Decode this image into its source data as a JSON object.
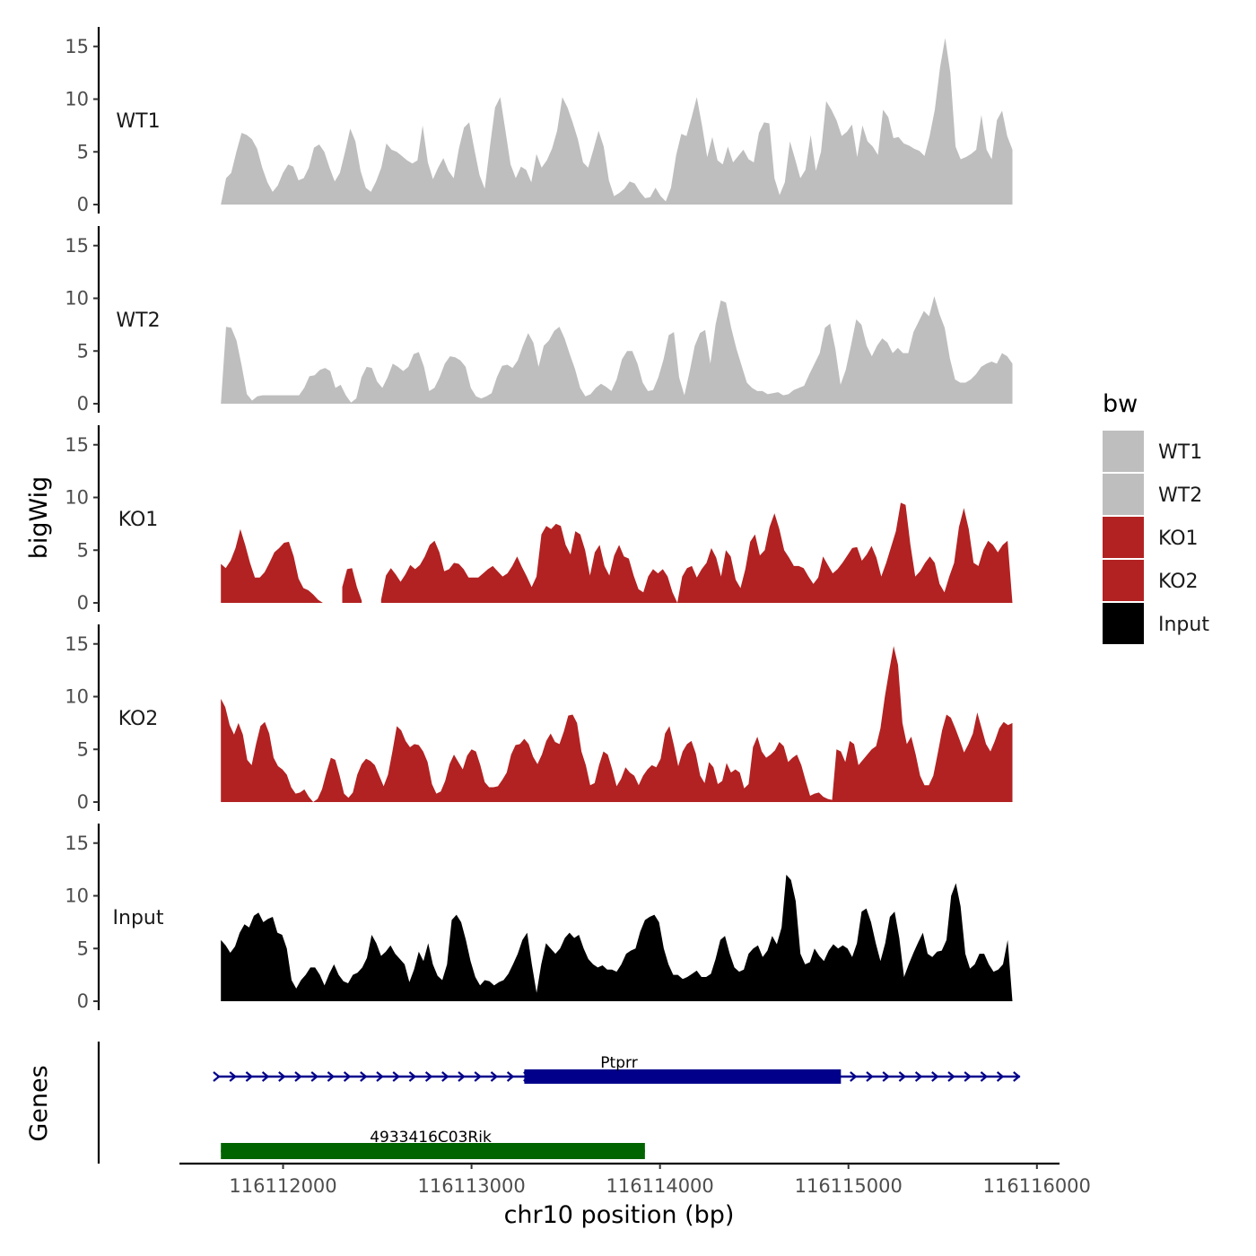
{
  "chart_data": {
    "type": "area",
    "y_axis_title": "bigWig",
    "x_axis_title": "chr10 position (bp)",
    "genes_axis_title": "Genes",
    "ylim": [
      0,
      16
    ],
    "yticks": [
      0,
      5,
      10,
      15
    ],
    "xlim": [
      116111450,
      116116120
    ],
    "xticks": [
      116112000,
      116113000,
      116114000,
      116115000,
      116116000
    ],
    "data_x_range": [
      116111670,
      116115870
    ],
    "legend": {
      "title": "bw",
      "position": "right",
      "entries": [
        {
          "label": "WT1",
          "color": "#bebebe"
        },
        {
          "label": "WT2",
          "color": "#bebebe"
        },
        {
          "label": "KO1",
          "color": "#b22222"
        },
        {
          "label": "KO2",
          "color": "#b22222"
        },
        {
          "label": "Input",
          "color": "#000000"
        }
      ]
    },
    "series": [
      {
        "name": "WT1",
        "color": "#bebebe",
        "values": [
          0,
          2.5,
          3,
          5,
          6.8,
          6.6,
          6.2,
          5.3,
          3.5,
          2.1,
          1.2,
          1.8,
          3,
          3.8,
          3.6,
          2.3,
          2.5,
          3.5,
          5.4,
          5.7,
          5,
          3.5,
          2.2,
          3,
          5,
          7.2,
          6,
          3.2,
          1.6,
          1.2,
          2.2,
          3.5,
          5.8,
          5.2,
          5,
          4.6,
          4.2,
          3.9,
          4.2,
          7.5,
          4,
          2.4,
          3.5,
          4.4,
          3.2,
          2.5,
          5.3,
          7.3,
          7.8,
          5.2,
          2.8,
          1.5,
          5.5,
          9.2,
          10.2,
          7,
          3.8,
          2.5,
          3.6,
          3.3,
          2.1,
          4.8,
          3.5,
          4.2,
          5.3,
          7,
          10.2,
          9.2,
          7.8,
          6.2,
          4,
          3.5,
          5.2,
          7,
          5.5,
          2.3,
          0.8,
          1.1,
          1.5,
          2.2,
          2,
          1.2,
          0.6,
          0.7,
          1.6,
          0.8,
          0.3,
          1.6,
          4.7,
          6.7,
          6.5,
          8.3,
          10.2,
          7.5,
          4.5,
          6.4,
          4.2,
          3.8,
          5.5,
          4,
          4.6,
          5.2,
          4.3,
          4,
          6.8,
          7.8,
          7.7,
          2.5,
          0.9,
          2.1,
          6,
          4.3,
          2.5,
          3.3,
          6.6,
          3.2,
          5,
          9.8,
          9,
          8,
          6.5,
          6.9,
          7.6,
          4.5,
          7.5,
          6,
          5.5,
          4.7,
          9,
          8.3,
          6.3,
          6.4,
          5.8,
          5.6,
          5.3,
          5.1,
          4.6,
          6.5,
          9,
          13,
          15.8,
          12.5,
          5.5,
          4.3,
          4.5,
          4.8,
          5.2,
          8.5,
          5.2,
          4.3,
          8,
          8.9,
          6.5,
          5.2
        ]
      },
      {
        "name": "WT2",
        "color": "#bebebe",
        "values": [
          0,
          7.3,
          7.2,
          6,
          3.6,
          0.9,
          0.3,
          0.7,
          0.8,
          0.8,
          0.8,
          0.8,
          0.8,
          0.8,
          0.8,
          0.8,
          1.5,
          2.6,
          2.7,
          3.2,
          3.4,
          3.1,
          1.5,
          1.8,
          0.8,
          0.1,
          0.5,
          2.5,
          3.5,
          3.4,
          2.1,
          1.5,
          2.5,
          3.8,
          3.5,
          3.1,
          3.5,
          4.7,
          4.9,
          3.5,
          1.2,
          1.5,
          2.5,
          3.8,
          4.5,
          4.4,
          4.1,
          3.5,
          1.5,
          0.7,
          0.5,
          0.7,
          1,
          2.5,
          3.6,
          3.7,
          3.4,
          4.1,
          5.5,
          6.7,
          5.8,
          3.5,
          5.5,
          6,
          6.9,
          7.3,
          6.2,
          4.7,
          3.3,
          1.5,
          0.7,
          0.9,
          1.5,
          1.9,
          1.6,
          1.2,
          2.3,
          4.2,
          5,
          5,
          3.8,
          2,
          1.2,
          1.3,
          2.5,
          4.2,
          6.5,
          6.8,
          2.5,
          0.8,
          3,
          5.5,
          6.7,
          7,
          3.8,
          7.5,
          9.8,
          9.6,
          7.2,
          5.2,
          3.6,
          2,
          1.5,
          1.2,
          1.2,
          0.9,
          1,
          1.1,
          0.8,
          0.9,
          1.3,
          1.5,
          1.7,
          2.8,
          3.8,
          4.8,
          7.2,
          7.6,
          5.2,
          1.8,
          3.2,
          5.5,
          8,
          7.5,
          5.5,
          4.5,
          5.5,
          6.2,
          5.8,
          4.8,
          5.3,
          4.8,
          4.8,
          6.8,
          7.8,
          8.8,
          8.3,
          10.2,
          8.5,
          7.2,
          4.3,
          2.3,
          2,
          2,
          2.3,
          2.8,
          3.5,
          3.8,
          4,
          3.8,
          4.8,
          4.5,
          3.8
        ]
      },
      {
        "name": "KO1",
        "color": "#b22222",
        "values": [
          3.7,
          3.3,
          4,
          5.2,
          7,
          5.5,
          3.8,
          2.4,
          2.4,
          2.9,
          3.8,
          4.8,
          5.2,
          5.7,
          5.8,
          4.4,
          2.3,
          1.4,
          1.2,
          0.8,
          0.3,
          0,
          null,
          null,
          null,
          1.5,
          3.2,
          3.3,
          1.5,
          0.2,
          null,
          null,
          null,
          0.3,
          2.6,
          3.3,
          2.7,
          2,
          2.7,
          3.6,
          3.2,
          3.6,
          4.4,
          5.5,
          5.9,
          4.8,
          3,
          3.2,
          3.8,
          3.7,
          3.2,
          2.4,
          2.4,
          2.4,
          2.8,
          3.2,
          3.5,
          3,
          2.5,
          2.8,
          3.5,
          4.4,
          3.4,
          2.5,
          1.5,
          2.5,
          6.5,
          7.3,
          7,
          7.5,
          7.3,
          5.5,
          4.6,
          6.8,
          6.5,
          5,
          2.6,
          4.8,
          5.5,
          3.5,
          2.6,
          4.5,
          5.5,
          4.4,
          4.2,
          2.6,
          1.3,
          1,
          2.5,
          3.2,
          2.8,
          3.2,
          2.5,
          1,
          0,
          2.5,
          3.3,
          3.5,
          2.4,
          3.2,
          3.8,
          5.2,
          4.3,
          2.5,
          5,
          4.4,
          2.2,
          1.4,
          3.2,
          5.8,
          6.5,
          4.5,
          5,
          7.2,
          8.5,
          7,
          5,
          4.3,
          3.5,
          3.5,
          3.3,
          2.5,
          1.8,
          2.4,
          4.4,
          3.6,
          2.8,
          3.2,
          3.8,
          4.5,
          5.2,
          5.3,
          4,
          4.6,
          5.4,
          4.3,
          2.5,
          3.8,
          5.3,
          6.8,
          9.5,
          9.3,
          5.5,
          2.5,
          3,
          3.8,
          4.4,
          3.8,
          1.8,
          1,
          2.5,
          3.8,
          7.2,
          9,
          7,
          3.8,
          3.5,
          5,
          5.9,
          5.5,
          4.8,
          5.5,
          5.9,
          0
        ]
      },
      {
        "name": "KO2",
        "color": "#b22222",
        "values": [
          9.8,
          9,
          7.3,
          6.4,
          7.5,
          6.4,
          4,
          3.5,
          5.5,
          7.2,
          7.6,
          6.5,
          4.2,
          3.4,
          3.1,
          2.6,
          1.4,
          0.8,
          0.9,
          1.2,
          0.5,
          0,
          0.3,
          1.2,
          2.8,
          4.2,
          4,
          2.5,
          0.8,
          0.4,
          0.9,
          2.6,
          3.6,
          4.1,
          3.9,
          3.5,
          2.5,
          1.5,
          2.6,
          4.8,
          7.2,
          6.8,
          5.8,
          5.2,
          5.5,
          5.4,
          4.8,
          3.8,
          1.7,
          0.8,
          1,
          2,
          3.6,
          4.5,
          3.8,
          3.1,
          4.4,
          5,
          4.8,
          3.5,
          1.9,
          1.4,
          1.4,
          1.5,
          2.1,
          2.8,
          4.5,
          5.4,
          5.5,
          6,
          5.5,
          4.3,
          3.6,
          4.5,
          5.8,
          6.5,
          5.7,
          5.5,
          6.7,
          8.2,
          8.3,
          7.5,
          4.8,
          3.5,
          1.6,
          1.8,
          3.5,
          4.8,
          4.5,
          3.1,
          1.5,
          2.2,
          3.3,
          2.8,
          2.5,
          1.6,
          2.5,
          3.1,
          3.5,
          3.3,
          4.1,
          6.5,
          7.2,
          5.4,
          3.4,
          4.8,
          5.5,
          5.8,
          4.6,
          2.5,
          1.8,
          3.8,
          3.3,
          1.7,
          2,
          3.7,
          2.8,
          3.1,
          2.8,
          1.3,
          1.7,
          5.2,
          6.2,
          4.8,
          4.2,
          4.5,
          4.9,
          5.7,
          5.3,
          3.8,
          4.2,
          4.5,
          3.5,
          2,
          0.6,
          0.8,
          0.9,
          0.5,
          0.3,
          0.2,
          5,
          4.8,
          3.8,
          5.8,
          5.5,
          3.5,
          4,
          4.5,
          5,
          5.3,
          7,
          10,
          12.5,
          14.8,
          13,
          7.5,
          5.5,
          6.2,
          4.5,
          2.5,
          1.6,
          1.6,
          2.5,
          4.6,
          6.8,
          8.3,
          8,
          7,
          5.9,
          4.7,
          5.5,
          6.5,
          8.5,
          7,
          5.5,
          4.8,
          5.8,
          7,
          7.6,
          7.3,
          7.5
        ]
      },
      {
        "name": "Input",
        "color": "#000000",
        "values": [
          5.8,
          5.3,
          4.6,
          5.2,
          6.5,
          7.3,
          7,
          8.1,
          8.4,
          7.5,
          7.8,
          8,
          6.5,
          6.3,
          5,
          2,
          1.2,
          2,
          2.5,
          3.2,
          3.2,
          2.5,
          1.5,
          2.6,
          3.5,
          2.5,
          1.9,
          1.7,
          2.5,
          2.7,
          3.2,
          4.1,
          6.3,
          5.5,
          4.3,
          4.7,
          5.3,
          4.5,
          4,
          3.5,
          1.8,
          3,
          4.7,
          3.8,
          5.5,
          3.5,
          2.4,
          2,
          3.5,
          7.7,
          8.2,
          7.5,
          5.8,
          3.8,
          2.3,
          1.5,
          2,
          1.9,
          1.5,
          1.8,
          2,
          2.6,
          3.5,
          4.5,
          5.8,
          6.5,
          3.5,
          0.8,
          3.5,
          5.5,
          5,
          4.5,
          5,
          6,
          6.5,
          6,
          6.3,
          5,
          4,
          3.5,
          3.2,
          3.4,
          3,
          3,
          2.8,
          3.5,
          4.5,
          4.8,
          5,
          6.6,
          7.7,
          8,
          8.2,
          7.5,
          5,
          3.5,
          2.5,
          2.5,
          2.1,
          2.3,
          2.6,
          2.9,
          2.3,
          2.3,
          2.6,
          4,
          5.8,
          6.2,
          4.5,
          3.2,
          2.8,
          3,
          4.5,
          5,
          5.3,
          4.2,
          4.8,
          6.2,
          5.4,
          7,
          12,
          11.5,
          9.5,
          4.5,
          3.5,
          3.7,
          5,
          4.3,
          3.8,
          4.8,
          5.4,
          5,
          5.3,
          5,
          4.2,
          5.5,
          8.5,
          8.8,
          7.5,
          5.5,
          3.8,
          5.5,
          8,
          8.5,
          6,
          2.3,
          3.5,
          4.6,
          5.6,
          6.5,
          4.5,
          4.2,
          4.7,
          4.8,
          5.8,
          10,
          11.2,
          9,
          4.5,
          3.1,
          3.5,
          4.5,
          4.5,
          3.5,
          2.8,
          3,
          3.5,
          5.8,
          0
        ]
      }
    ],
    "genes": [
      {
        "name": "Ptprr",
        "color": "#00008b",
        "start": 116111650,
        "end": 116115910,
        "thick_start": 116113280,
        "thick_end": 116114960,
        "strand": "+"
      },
      {
        "name": "4933416C03Rik",
        "color": "#006400",
        "start": 116111670,
        "end": 116113920,
        "thick_start": 116111670,
        "thick_end": 116113920,
        "strand": ""
      }
    ]
  }
}
